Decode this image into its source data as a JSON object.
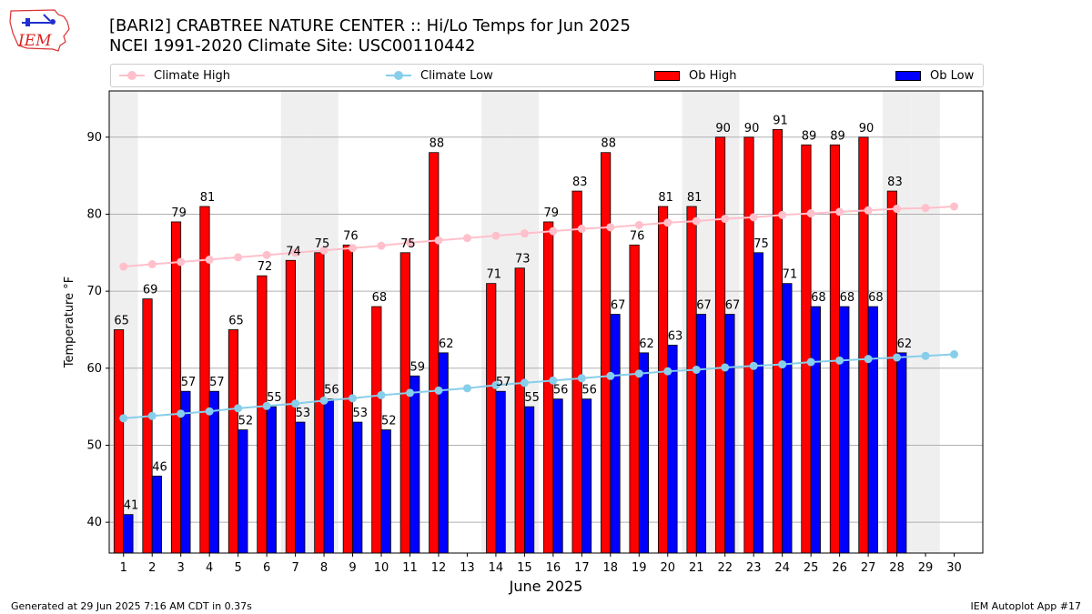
{
  "header": {
    "title_line1": "[BARI2] CRABTREE NATURE CENTER :: Hi/Lo Temps for Jun 2025",
    "title_line2": "NCEI 1991-2020 Climate Site: USC00110442",
    "logo_text": "IEM"
  },
  "footer": {
    "generated": "Generated at 29 Jun 2025 7:16 AM CDT in 0.37s",
    "app": "IEM Autoplot App #17"
  },
  "chart_data": {
    "type": "bar",
    "xlabel": "June 2025",
    "ylabel": "Temperature °F",
    "ylim": [
      36,
      96
    ],
    "yticks": [
      40,
      50,
      60,
      70,
      80,
      90
    ],
    "grid": true,
    "legend_position": "top",
    "categories": [
      "1",
      "2",
      "3",
      "4",
      "5",
      "6",
      "7",
      "8",
      "9",
      "10",
      "11",
      "12",
      "13",
      "14",
      "15",
      "16",
      "17",
      "18",
      "19",
      "20",
      "21",
      "22",
      "23",
      "24",
      "25",
      "26",
      "27",
      "28",
      "29",
      "30"
    ],
    "weekend_days": [
      1,
      7,
      8,
      14,
      15,
      21,
      22,
      28,
      29
    ],
    "series": [
      {
        "name": "Ob High",
        "kind": "bar",
        "color": "#ff0000",
        "values": [
          65,
          69,
          79,
          81,
          65,
          72,
          74,
          75,
          76,
          68,
          75,
          88,
          null,
          71,
          73,
          79,
          83,
          88,
          76,
          81,
          81,
          90,
          90,
          91,
          89,
          89,
          90,
          83,
          null,
          null
        ]
      },
      {
        "name": "Ob Low",
        "kind": "bar",
        "color": "#0000ff",
        "values": [
          41,
          46,
          57,
          57,
          52,
          55,
          53,
          56,
          53,
          52,
          59,
          62,
          null,
          57,
          55,
          56,
          56,
          67,
          62,
          63,
          67,
          67,
          75,
          71,
          68,
          68,
          68,
          62,
          null,
          null
        ]
      },
      {
        "name": "Climate High",
        "kind": "line",
        "color": "#ffc0cb",
        "values": [
          73.2,
          73.5,
          73.8,
          74.1,
          74.4,
          74.7,
          75.0,
          75.3,
          75.6,
          75.9,
          76.3,
          76.6,
          76.9,
          77.2,
          77.5,
          77.8,
          78.1,
          78.3,
          78.6,
          78.9,
          79.1,
          79.4,
          79.6,
          79.9,
          80.1,
          80.3,
          80.5,
          80.7,
          80.8,
          81.0
        ]
      },
      {
        "name": "Climate Low",
        "kind": "line",
        "color": "#87ceeb",
        "values": [
          53.5,
          53.8,
          54.1,
          54.4,
          54.8,
          55.1,
          55.4,
          55.8,
          56.1,
          56.5,
          56.8,
          57.1,
          57.4,
          57.8,
          58.1,
          58.4,
          58.7,
          59.0,
          59.3,
          59.6,
          59.8,
          60.1,
          60.3,
          60.5,
          60.8,
          61.0,
          61.2,
          61.4,
          61.6,
          61.8
        ]
      }
    ]
  }
}
